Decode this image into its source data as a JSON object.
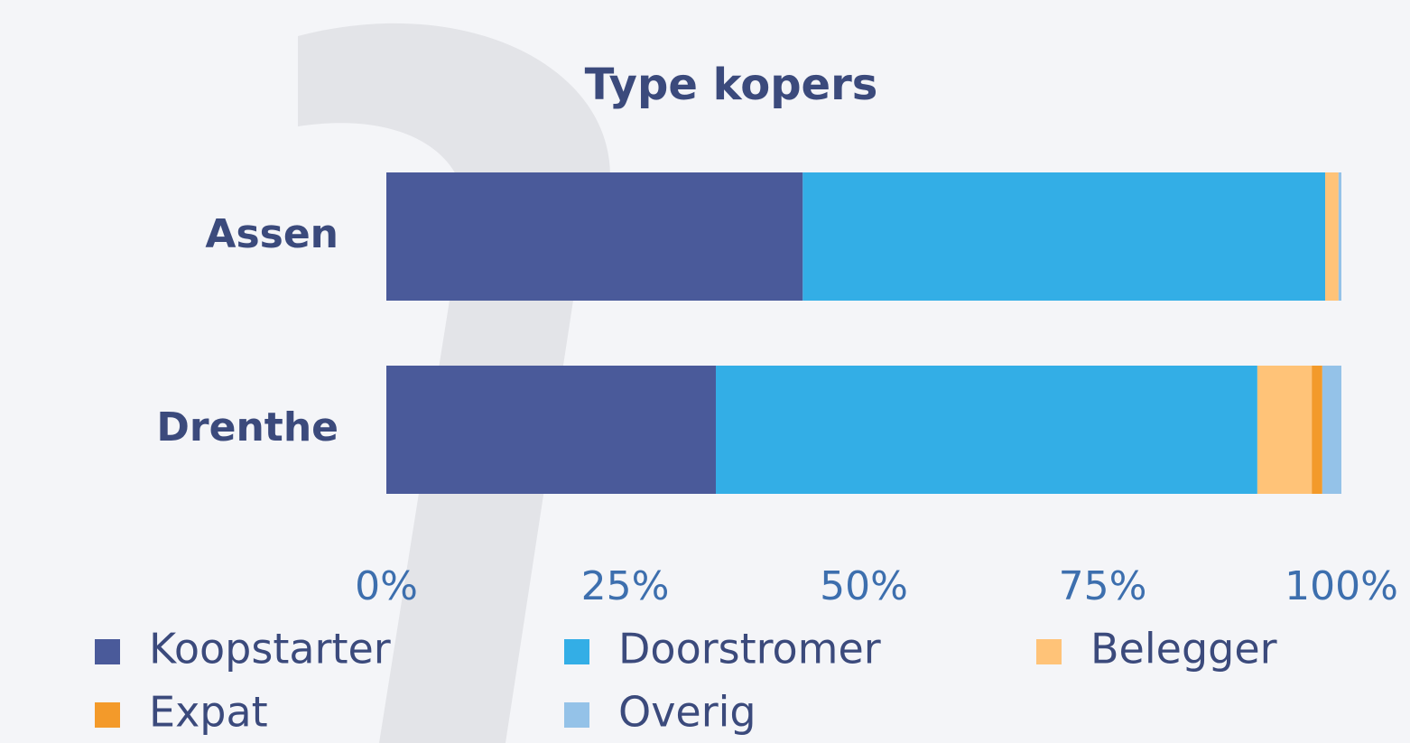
{
  "chart_data": {
    "type": "stacked_barh",
    "title": "Type kopers",
    "categories": [
      "Assen",
      "Drenthe"
    ],
    "series": [
      {
        "name": "Koopstarter",
        "color": "#4a5a9a",
        "values": [
          43.6,
          34.5
        ]
      },
      {
        "name": "Doorstromer",
        "color": "#33aee6",
        "values": [
          54.7,
          56.7
        ]
      },
      {
        "name": "Belegger",
        "color": "#ffc378",
        "values": [
          1.4,
          5.7
        ]
      },
      {
        "name": "Expat",
        "color": "#f39a2a",
        "values": [
          0,
          1.1
        ]
      },
      {
        "name": "Overig",
        "color": "#94c2e8",
        "values": [
          0.3,
          2.0
        ]
      }
    ],
    "xlim": [
      0,
      100
    ],
    "xticks": [
      {
        "value": 0,
        "label": "0%"
      },
      {
        "value": 25,
        "label": "25%"
      },
      {
        "value": 50,
        "label": "50%"
      },
      {
        "value": 75,
        "label": "75%"
      },
      {
        "value": 100,
        "label": "100%"
      }
    ],
    "legend": "bottom"
  }
}
